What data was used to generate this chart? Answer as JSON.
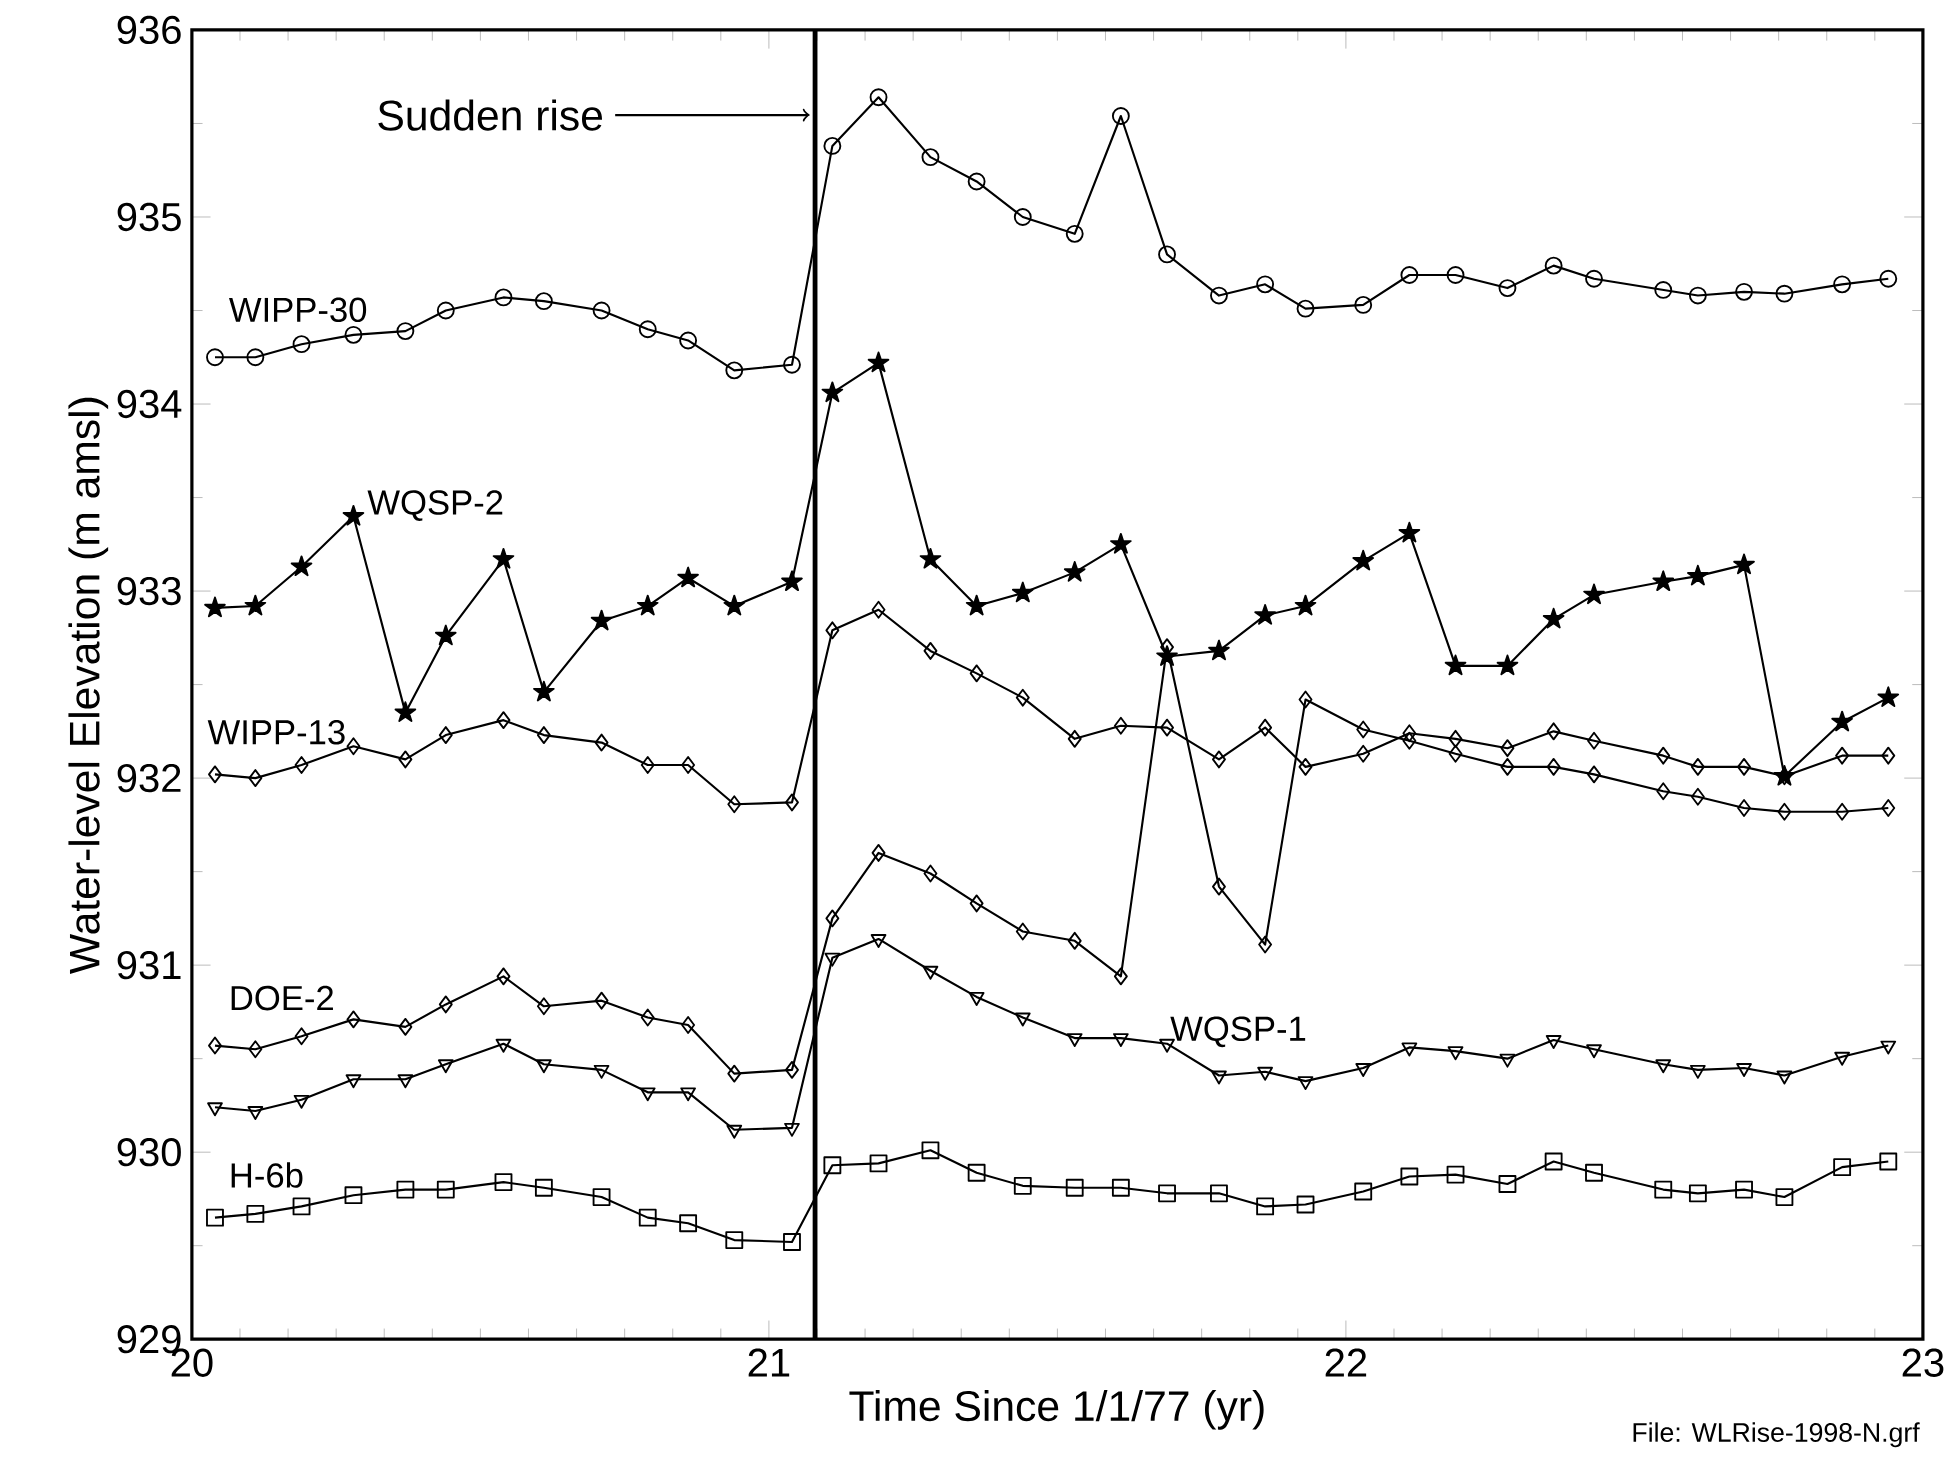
{
  "chart_data": {
    "type": "line",
    "xlabel": "Time Since 1/1/77 (yr)",
    "ylabel": "Water-level Elevation (m amsl)",
    "x": [
      20.04,
      20.11,
      20.19,
      20.28,
      20.37,
      20.44,
      20.54,
      20.61,
      20.71,
      20.79,
      20.86,
      20.94,
      21.04,
      21.11,
      21.19,
      21.28,
      21.36,
      21.44,
      21.53,
      21.61,
      21.69,
      21.78,
      21.86,
      21.93,
      22.03,
      22.11,
      22.19,
      22.28,
      22.36,
      22.43,
      22.55,
      22.61,
      22.69,
      22.76,
      22.86,
      22.94
    ],
    "series": [
      {
        "name": "WIPP-30",
        "color": "#000000",
        "marker": "circle",
        "values": [
          934.25,
          934.25,
          934.32,
          934.37,
          934.39,
          934.5,
          934.57,
          934.55,
          934.5,
          934.4,
          934.34,
          934.18,
          934.21,
          935.38,
          935.64,
          935.32,
          935.19,
          935.0,
          934.91,
          935.54,
          934.8,
          934.58,
          934.64,
          934.51,
          934.53,
          934.69,
          934.69,
          934.62,
          934.74,
          934.67,
          934.61,
          934.58,
          934.6,
          934.59,
          934.64,
          934.67
        ]
      },
      {
        "name": "WQSP-2",
        "color": "#000000",
        "marker": "star",
        "values": [
          932.91,
          932.92,
          933.13,
          933.4,
          932.35,
          932.76,
          933.17,
          932.46,
          932.84,
          932.92,
          933.07,
          932.92,
          933.05,
          934.06,
          934.22,
          933.17,
          932.92,
          932.99,
          933.1,
          933.25,
          932.65,
          932.68,
          932.87,
          932.92,
          933.16,
          933.31,
          932.6,
          932.6,
          932.85,
          932.98,
          933.05,
          933.08,
          933.14,
          932.01,
          932.3,
          932.43
        ]
      },
      {
        "name": "WIPP-13",
        "color": "#000000",
        "marker": "diamond",
        "values": [
          932.02,
          932.0,
          932.07,
          932.17,
          932.1,
          932.23,
          932.31,
          932.23,
          932.19,
          932.07,
          932.07,
          931.86,
          931.87,
          932.79,
          932.9,
          932.68,
          932.56,
          932.43,
          932.21,
          932.28,
          932.27,
          932.1,
          932.27,
          932.06,
          932.13,
          932.24,
          932.21,
          932.16,
          932.25,
          932.2,
          932.12,
          932.06,
          932.06,
          932.01,
          932.12,
          932.12
        ]
      },
      {
        "name": "DOE-2",
        "color": "#000000",
        "marker": "diamond",
        "values": [
          930.57,
          930.55,
          930.62,
          930.71,
          930.67,
          930.79,
          930.94,
          930.78,
          930.81,
          930.72,
          930.68,
          930.42,
          930.44,
          931.25,
          931.6,
          931.49,
          931.33,
          931.18,
          931.13,
          930.94,
          932.7,
          931.42,
          931.11,
          932.42,
          932.26,
          932.2,
          932.13,
          932.06,
          932.06,
          932.02,
          931.93,
          931.9,
          931.84,
          931.82,
          931.82,
          931.84
        ]
      },
      {
        "name": "WQSP-1",
        "color": "#000000",
        "marker": "triangle",
        "values": [
          930.24,
          930.22,
          930.28,
          930.39,
          930.39,
          930.47,
          930.58,
          930.47,
          930.44,
          930.32,
          930.32,
          930.12,
          930.13,
          931.04,
          931.14,
          930.97,
          930.83,
          930.72,
          930.61,
          930.61,
          930.58,
          930.41,
          930.43,
          930.38,
          930.45,
          930.56,
          930.54,
          930.5,
          930.6,
          930.55,
          930.47,
          930.44,
          930.45,
          930.41,
          930.51,
          930.57
        ]
      },
      {
        "name": "H-6b",
        "color": "#000000",
        "marker": "square",
        "values": [
          929.65,
          929.67,
          929.71,
          929.77,
          929.8,
          929.8,
          929.84,
          929.81,
          929.76,
          929.65,
          929.62,
          929.53,
          929.52,
          929.93,
          929.94,
          930.01,
          929.89,
          929.82,
          929.81,
          929.81,
          929.78,
          929.78,
          929.71,
          929.72,
          929.79,
          929.87,
          929.88,
          929.83,
          929.95,
          929.89,
          929.8,
          929.78,
          929.8,
          929.76,
          929.92,
          929.95
        ]
      }
    ],
    "xlim": [
      20,
      23
    ],
    "xticks": [
      20,
      21,
      22,
      23
    ],
    "ylim": [
      929,
      936
    ],
    "yticks": [
      929,
      930,
      931,
      932,
      933,
      934,
      935,
      936
    ],
    "ref_lines": [
      {
        "axis": "x",
        "value": 21.08,
        "label": "Sudden rise"
      }
    ],
    "annotations": [
      "File: WLRise-1998-N.grf"
    ],
    "grid": false,
    "legend": false,
    "line_style": "solid"
  }
}
